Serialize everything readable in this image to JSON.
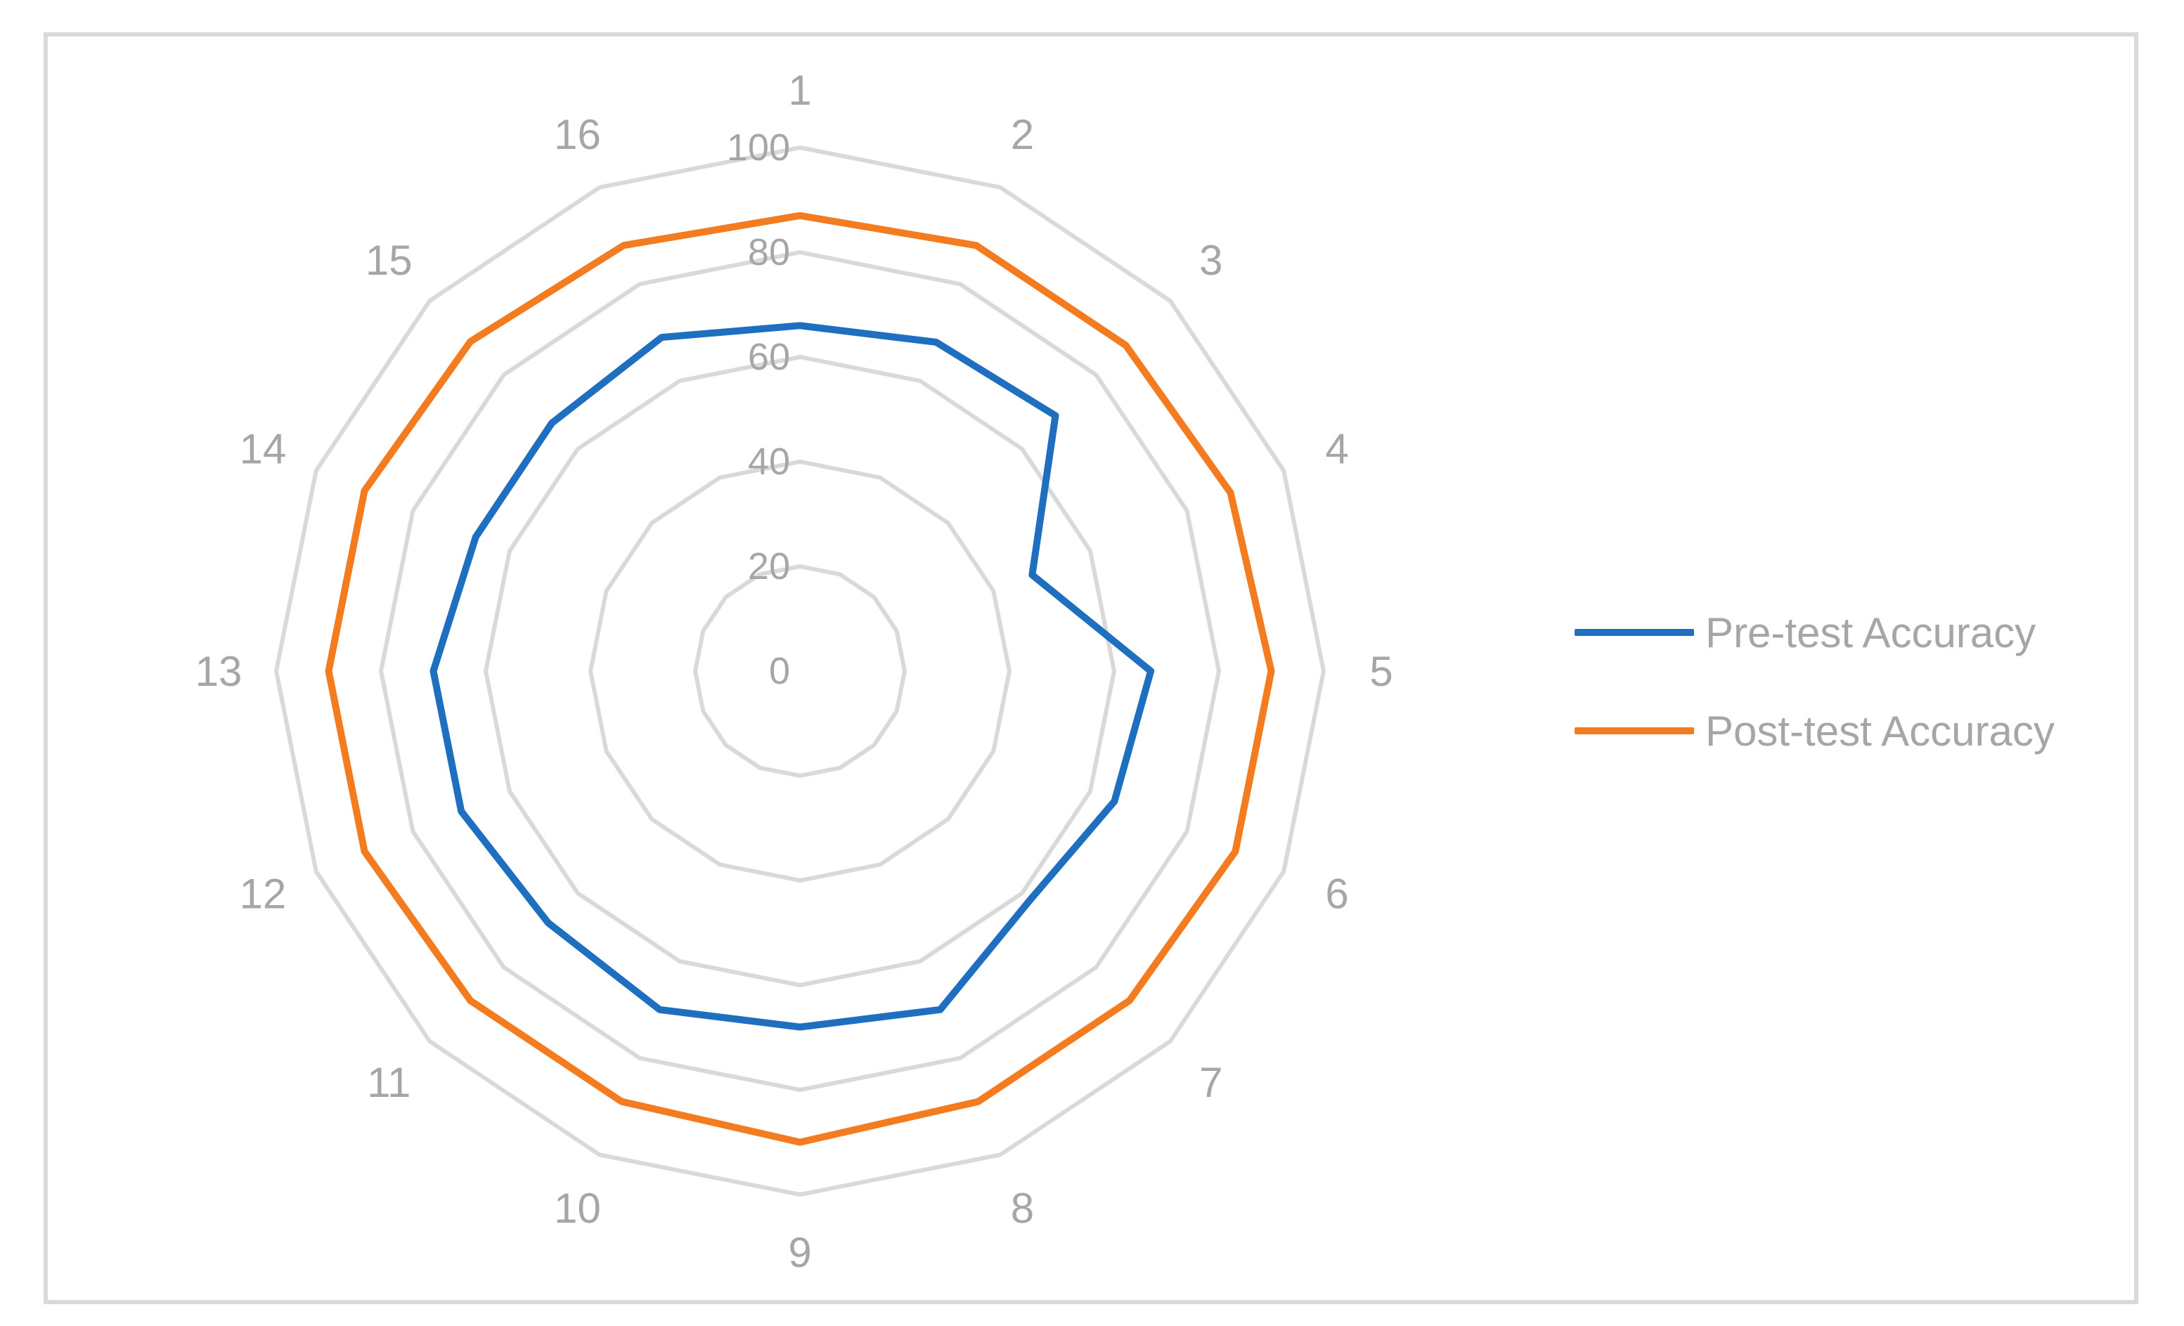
{
  "chart_data": {
    "type": "radar",
    "title": "",
    "categories": [
      "1",
      "2",
      "3",
      "4",
      "5",
      "6",
      "7",
      "8",
      "9",
      "10",
      "11",
      "12",
      "13",
      "14",
      "15",
      "16"
    ],
    "radial_ticks": [
      "0",
      "20",
      "40",
      "60",
      "80",
      "100"
    ],
    "rlim": [
      0,
      100
    ],
    "grid": true,
    "legend_position": "right",
    "series": [
      {
        "name": "Pre-test Accuracy",
        "color": "#1f6fc0",
        "values": [
          66,
          68,
          69,
          48,
          67,
          65,
          62,
          70,
          68,
          70,
          68,
          70,
          70,
          67,
          67,
          69
        ]
      },
      {
        "name": "Post-test Accuracy",
        "color": "#f47c20",
        "values": [
          87,
          88,
          88,
          89,
          90,
          90,
          89,
          89,
          90,
          89,
          89,
          90,
          90,
          90,
          89,
          88
        ]
      }
    ]
  }
}
